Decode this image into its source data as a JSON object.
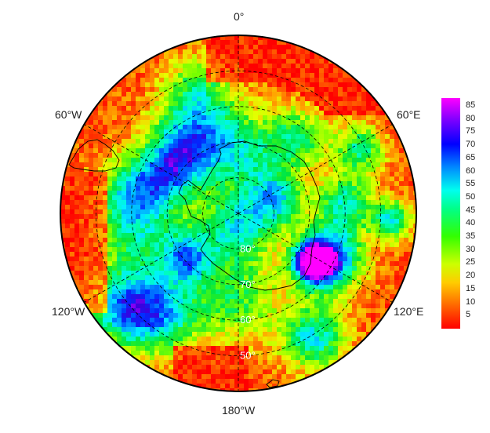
{
  "map": {
    "projection": "south-polar-stereographic",
    "longitude_labels": [
      {
        "text": "0°",
        "lon": 0
      },
      {
        "text": "60°E",
        "lon": 60
      },
      {
        "text": "120°E",
        "lon": 120
      },
      {
        "text": "180°W",
        "lon": 180
      },
      {
        "text": "120°W",
        "lon": -120
      },
      {
        "text": "60°W",
        "lon": -60
      }
    ],
    "latitude_labels": [
      {
        "text": "50°",
        "lat": -50
      },
      {
        "text": "60°",
        "lat": -60
      },
      {
        "text": "70°",
        "lat": -70
      },
      {
        "text": "80°",
        "lat": -80
      }
    ],
    "latitude_circles": [
      -50,
      -60,
      -70,
      -80
    ],
    "meridians": [
      0,
      60,
      120,
      180,
      240,
      300
    ],
    "outer_latitude": -40,
    "field_description_colors": "rainbow"
  },
  "colorbar": {
    "ticks": [
      "85",
      "80",
      "75",
      "70",
      "65",
      "60",
      "55",
      "50",
      "45",
      "40",
      "35",
      "30",
      "25",
      "20",
      "15",
      "10",
      "5"
    ],
    "min": 0,
    "max": 88,
    "colors": [
      "#ff0000",
      "#ff5500",
      "#ffaa00",
      "#ffee00",
      "#c8ff00",
      "#55ff00",
      "#00e040",
      "#00ff99",
      "#00ffee",
      "#00c8ff",
      "#0066ff",
      "#0000ff",
      "#2200cc",
      "#8800ff",
      "#ff00ff"
    ]
  }
}
